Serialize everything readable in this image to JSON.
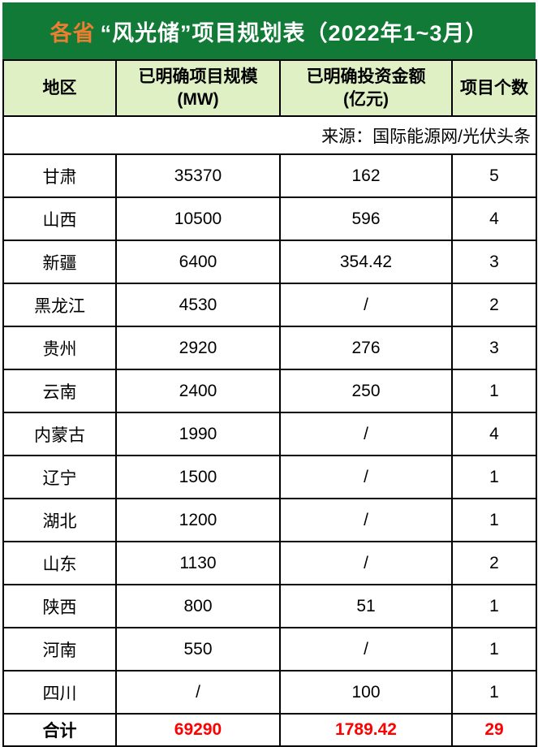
{
  "title": {
    "highlight": "各省",
    "rest": "“风光储”项目规划表（2022年1~3月）",
    "highlight_color": "#ED7D31",
    "text_color": "#FFFFFF",
    "background_color": "#117A37"
  },
  "table": {
    "header": {
      "background_color": "#DFF0C5",
      "col_region": "地区",
      "col_scale_label": "已明确项目规模",
      "col_scale_unit": "(MW)",
      "col_investment_label": "已明确投资金额",
      "col_investment_unit": "(亿元)",
      "col_count": "项目个数"
    },
    "source_note": "来源：国际能源网/光伏头条",
    "rows": [
      {
        "region": "甘肃",
        "scale_mw": "35370",
        "investment": "162",
        "count": "5"
      },
      {
        "region": "山西",
        "scale_mw": "10500",
        "investment": "596",
        "count": "4"
      },
      {
        "region": "新疆",
        "scale_mw": "6400",
        "investment": "354.42",
        "count": "3"
      },
      {
        "region": "黑龙江",
        "scale_mw": "4530",
        "investment": "/",
        "count": "2"
      },
      {
        "region": "贵州",
        "scale_mw": "2920",
        "investment": "276",
        "count": "3"
      },
      {
        "region": "云南",
        "scale_mw": "2400",
        "investment": "250",
        "count": "1"
      },
      {
        "region": "内蒙古",
        "scale_mw": "1990",
        "investment": "/",
        "count": "4"
      },
      {
        "region": "辽宁",
        "scale_mw": "1500",
        "investment": "/",
        "count": "1"
      },
      {
        "region": "湖北",
        "scale_mw": "1200",
        "investment": "/",
        "count": "1"
      },
      {
        "region": "山东",
        "scale_mw": "1130",
        "investment": "/",
        "count": "2"
      },
      {
        "region": "陕西",
        "scale_mw": "800",
        "investment": "51",
        "count": "1"
      },
      {
        "region": "河南",
        "scale_mw": "550",
        "investment": "/",
        "count": "1"
      },
      {
        "region": "四川",
        "scale_mw": "/",
        "investment": "100",
        "count": "1"
      }
    ],
    "total": {
      "label": "合计",
      "scale_mw": "69290",
      "investment": "1789.42",
      "count": "29",
      "value_color": "#FF0000"
    }
  }
}
